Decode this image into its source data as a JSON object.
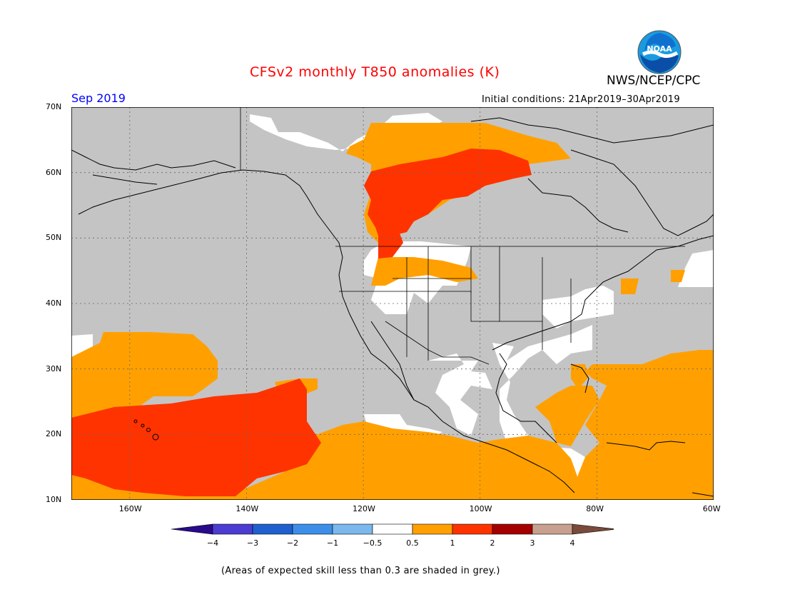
{
  "header": {
    "title": "CFSv2 monthly T850 anomalies (K)",
    "valid_month": "Sep 2019",
    "initial_conditions": "Initial conditions: 21Apr2019–30Apr2019",
    "organization": "NWS/NCEP/CPC",
    "logo_text": "NOAA"
  },
  "map": {
    "projection": "lat-lon",
    "lon_range": [
      -170,
      -60
    ],
    "lat_range": [
      10,
      70
    ],
    "lat_labels": [
      "70N",
      "60N",
      "50N",
      "40N",
      "30N",
      "20N",
      "10N"
    ],
    "lon_labels": [
      "160W",
      "140W",
      "120W",
      "100W",
      "80W",
      "60W"
    ],
    "grid": "dotted",
    "grey_meaning": "low skill"
  },
  "legend": {
    "bounds": [
      "−4",
      "−3",
      "−2",
      "−1",
      "−0.5",
      "0.5",
      "1",
      "2",
      "3",
      "4"
    ],
    "colors": [
      "#2a0a8c",
      "#4b3dd1",
      "#1f5fd0",
      "#3d8ee8",
      "#7ab8ee",
      "#ffffff",
      "#ffa000",
      "#ff3300",
      "#a40000",
      "#c8a090",
      "#7a4a3a"
    ]
  },
  "footnote": "(Areas of expected skill less than 0.3 are shaded in grey.)"
}
